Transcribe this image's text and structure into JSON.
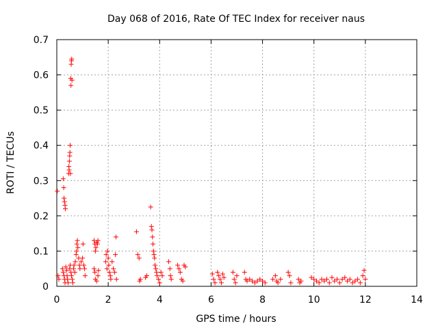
{
  "chart_data": {
    "type": "scatter",
    "title": "Day 068 of 2016, Rate Of TEC Index for receiver naus",
    "xlabel": "GPS time / hours",
    "ylabel": "ROTI / TECUs",
    "xlim": [
      0,
      14
    ],
    "ylim": [
      0,
      0.7
    ],
    "xticks": [
      0,
      2,
      4,
      6,
      8,
      10,
      12,
      14
    ],
    "yticks": [
      0,
      0.1,
      0.2,
      0.3,
      0.4,
      0.5,
      0.6,
      0.7
    ],
    "xtick_labels": [
      "0",
      "2",
      "4",
      "6",
      "8",
      "10",
      "12",
      "14"
    ],
    "ytick_labels": [
      "0",
      "0.1",
      "0.2",
      "0.3",
      "0.4",
      "0.5",
      "0.6",
      "0.7"
    ],
    "grid": true,
    "marker": "+",
    "marker_color": "#ff0000",
    "series": [
      {
        "points": [
          [
            0.02,
            0.27
          ],
          [
            0.05,
            0.03
          ],
          [
            0.08,
            0.02
          ],
          [
            0.25,
            0.305
          ],
          [
            0.27,
            0.28
          ],
          [
            0.28,
            0.25
          ],
          [
            0.3,
            0.24
          ],
          [
            0.32,
            0.23
          ],
          [
            0.33,
            0.22
          ],
          [
            0.22,
            0.05
          ],
          [
            0.25,
            0.04
          ],
          [
            0.28,
            0.03
          ],
          [
            0.3,
            0.02
          ],
          [
            0.32,
            0.01
          ],
          [
            0.35,
            0.055
          ],
          [
            0.38,
            0.045
          ],
          [
            0.4,
            0.03
          ],
          [
            0.42,
            0.02
          ],
          [
            0.44,
            0.01
          ],
          [
            0.46,
            0.32
          ],
          [
            0.47,
            0.34
          ],
          [
            0.48,
            0.33
          ],
          [
            0.49,
            0.355
          ],
          [
            0.5,
            0.37
          ],
          [
            0.51,
            0.38
          ],
          [
            0.52,
            0.4
          ],
          [
            0.53,
            0.32
          ],
          [
            0.54,
            0.59
          ],
          [
            0.55,
            0.57
          ],
          [
            0.56,
            0.63
          ],
          [
            0.57,
            0.64
          ],
          [
            0.58,
            0.645
          ],
          [
            0.59,
            0.585
          ],
          [
            0.5,
            0.05
          ],
          [
            0.52,
            0.06
          ],
          [
            0.55,
            0.04
          ],
          [
            0.57,
            0.03
          ],
          [
            0.6,
            0.02
          ],
          [
            0.62,
            0.01
          ],
          [
            0.65,
            0.05
          ],
          [
            0.67,
            0.06
          ],
          [
            0.7,
            0.04
          ],
          [
            0.72,
            0.07
          ],
          [
            0.75,
            0.09
          ],
          [
            0.77,
            0.1
          ],
          [
            0.78,
            0.12
          ],
          [
            0.8,
            0.13
          ],
          [
            0.82,
            0.11
          ],
          [
            0.85,
            0.08
          ],
          [
            0.88,
            0.06
          ],
          [
            0.9,
            0.05
          ],
          [
            0.95,
            0.07
          ],
          [
            1.0,
            0.08
          ],
          [
            1.02,
            0.12
          ],
          [
            1.05,
            0.06
          ],
          [
            1.08,
            0.05
          ],
          [
            1.1,
            0.03
          ],
          [
            1.45,
            0.13
          ],
          [
            1.48,
            0.12
          ],
          [
            1.5,
            0.1
          ],
          [
            1.52,
            0.11
          ],
          [
            1.55,
            0.125
          ],
          [
            1.58,
            0.12
          ],
          [
            1.6,
            0.13
          ],
          [
            1.45,
            0.05
          ],
          [
            1.48,
            0.04
          ],
          [
            1.5,
            0.02
          ],
          [
            1.55,
            0.015
          ],
          [
            1.6,
            0.03
          ],
          [
            1.62,
            0.045
          ],
          [
            1.9,
            0.07
          ],
          [
            1.92,
            0.09
          ],
          [
            1.95,
            0.05
          ],
          [
            1.97,
            0.1
          ],
          [
            2.0,
            0.08
          ],
          [
            2.02,
            0.06
          ],
          [
            2.05,
            0.04
          ],
          [
            2.08,
            0.03
          ],
          [
            2.1,
            0.02
          ],
          [
            2.15,
            0.07
          ],
          [
            2.2,
            0.05
          ],
          [
            2.25,
            0.04
          ],
          [
            2.28,
            0.09
          ],
          [
            2.3,
            0.14
          ],
          [
            2.32,
            0.02
          ],
          [
            3.1,
            0.155
          ],
          [
            3.15,
            0.09
          ],
          [
            3.2,
            0.08
          ],
          [
            3.22,
            0.015
          ],
          [
            3.25,
            0.02
          ],
          [
            3.45,
            0.025
          ],
          [
            3.5,
            0.03
          ],
          [
            3.65,
            0.225
          ],
          [
            3.68,
            0.17
          ],
          [
            3.7,
            0.16
          ],
          [
            3.72,
            0.14
          ],
          [
            3.74,
            0.12
          ],
          [
            3.76,
            0.1
          ],
          [
            3.78,
            0.09
          ],
          [
            3.8,
            0.08
          ],
          [
            3.82,
            0.06
          ],
          [
            3.85,
            0.05
          ],
          [
            3.88,
            0.04
          ],
          [
            3.9,
            0.03
          ],
          [
            3.95,
            0.02
          ],
          [
            4.0,
            0.01
          ],
          [
            4.05,
            0.04
          ],
          [
            4.1,
            0.03
          ],
          [
            4.35,
            0.07
          ],
          [
            4.4,
            0.05
          ],
          [
            4.42,
            0.03
          ],
          [
            4.45,
            0.02
          ],
          [
            4.7,
            0.06
          ],
          [
            4.75,
            0.05
          ],
          [
            4.8,
            0.04
          ],
          [
            4.85,
            0.02
          ],
          [
            4.9,
            0.015
          ],
          [
            4.95,
            0.06
          ],
          [
            5.0,
            0.055
          ],
          [
            6.05,
            0.035
          ],
          [
            6.1,
            0.02
          ],
          [
            6.15,
            0.01
          ],
          [
            6.25,
            0.04
          ],
          [
            6.3,
            0.03
          ],
          [
            6.35,
            0.02
          ],
          [
            6.4,
            0.01
          ],
          [
            6.45,
            0.035
          ],
          [
            6.5,
            0.025
          ],
          [
            6.85,
            0.04
          ],
          [
            6.9,
            0.02
          ],
          [
            6.95,
            0.01
          ],
          [
            7.0,
            0.03
          ],
          [
            7.3,
            0.04
          ],
          [
            7.35,
            0.02
          ],
          [
            7.4,
            0.015
          ],
          [
            7.5,
            0.02
          ],
          [
            7.6,
            0.015
          ],
          [
            7.7,
            0.01
          ],
          [
            7.8,
            0.015
          ],
          [
            7.9,
            0.02
          ],
          [
            8.0,
            0.015
          ],
          [
            8.1,
            0.01
          ],
          [
            8.4,
            0.02
          ],
          [
            8.5,
            0.03
          ],
          [
            8.55,
            0.015
          ],
          [
            8.6,
            0.01
          ],
          [
            8.7,
            0.02
          ],
          [
            9.0,
            0.04
          ],
          [
            9.05,
            0.03
          ],
          [
            9.1,
            0.01
          ],
          [
            9.4,
            0.02
          ],
          [
            9.45,
            0.01
          ],
          [
            9.5,
            0.015
          ],
          [
            9.9,
            0.025
          ],
          [
            10.0,
            0.02
          ],
          [
            10.1,
            0.015
          ],
          [
            10.2,
            0.01
          ],
          [
            10.3,
            0.02
          ],
          [
            10.4,
            0.015
          ],
          [
            10.5,
            0.02
          ],
          [
            10.6,
            0.01
          ],
          [
            10.7,
            0.025
          ],
          [
            10.8,
            0.015
          ],
          [
            10.9,
            0.02
          ],
          [
            11.0,
            0.01
          ],
          [
            11.1,
            0.02
          ],
          [
            11.2,
            0.025
          ],
          [
            11.3,
            0.015
          ],
          [
            11.4,
            0.02
          ],
          [
            11.5,
            0.01
          ],
          [
            11.6,
            0.015
          ],
          [
            11.7,
            0.02
          ],
          [
            11.8,
            0.01
          ],
          [
            11.9,
            0.03
          ],
          [
            11.95,
            0.045
          ],
          [
            12.0,
            0.02
          ]
        ]
      }
    ]
  }
}
